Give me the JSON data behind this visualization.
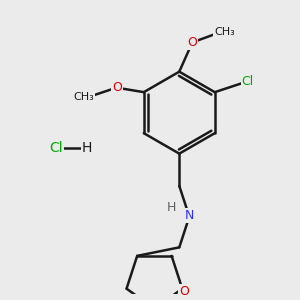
{
  "background_color": "#ebebeb",
  "bond_color": "#1a1a1a",
  "atom_colors": {
    "O": "#e00000",
    "N": "#3030ff",
    "Cl": "#00aa00",
    "C": "#1a1a1a",
    "H": "#606060"
  },
  "bond_width": 1.8,
  "figsize": [
    3.0,
    3.0
  ],
  "dpi": 100
}
